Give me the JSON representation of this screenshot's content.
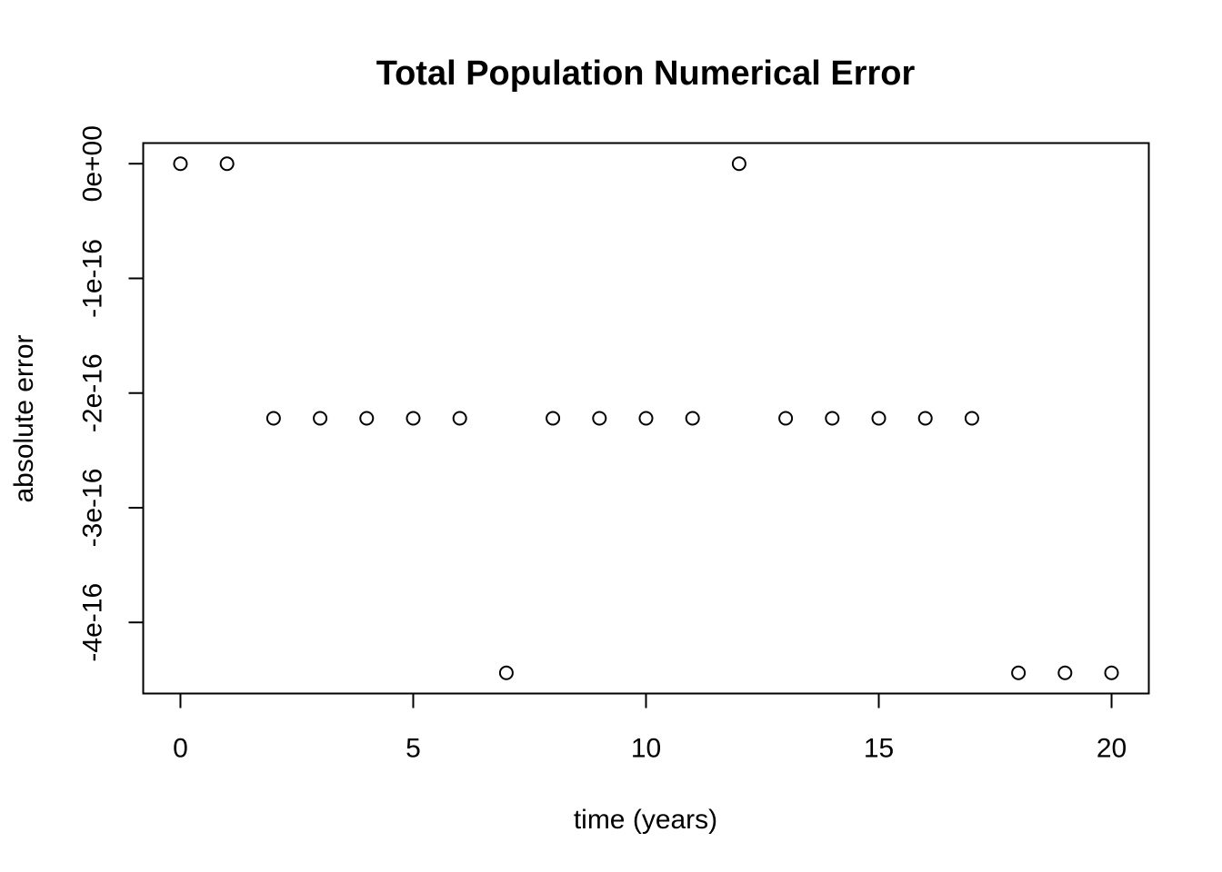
{
  "chart_data": {
    "type": "scatter",
    "title": "Total Population Numerical Error",
    "xlabel": "time (years)",
    "ylabel": "absolute error",
    "xlim": [
      -0.8,
      20.8
    ],
    "ylim": [
      -4.62e-16,
      1.8e-17
    ],
    "x_ticks": [
      0,
      5,
      10,
      15,
      20
    ],
    "x_tick_labels": [
      "0",
      "5",
      "10",
      "15",
      "20"
    ],
    "y_ticks": [
      0,
      -1e-16,
      -2e-16,
      -3e-16,
      -4e-16
    ],
    "y_tick_labels": [
      "0e+00",
      "-1e-16",
      "-2e-16",
      "-3e-16",
      "-4e-16"
    ],
    "grid": false,
    "marker": "open-circle",
    "series": [
      {
        "x": [
          0,
          1,
          2,
          3,
          4,
          5,
          6,
          7,
          8,
          9,
          10,
          11,
          12,
          13,
          14,
          15,
          16,
          17,
          18,
          19,
          20
        ],
        "y": [
          0,
          0,
          -2.22e-16,
          -2.22e-16,
          -2.22e-16,
          -2.22e-16,
          -2.22e-16,
          -4.44e-16,
          -2.22e-16,
          -2.22e-16,
          -2.22e-16,
          -2.22e-16,
          0,
          -2.22e-16,
          -2.22e-16,
          -2.22e-16,
          -2.22e-16,
          -2.22e-16,
          -4.44e-16,
          -4.44e-16,
          -4.44e-16
        ]
      }
    ],
    "colors": {
      "marker_stroke": "#000000",
      "axis": "#000000",
      "background": "#ffffff"
    }
  }
}
